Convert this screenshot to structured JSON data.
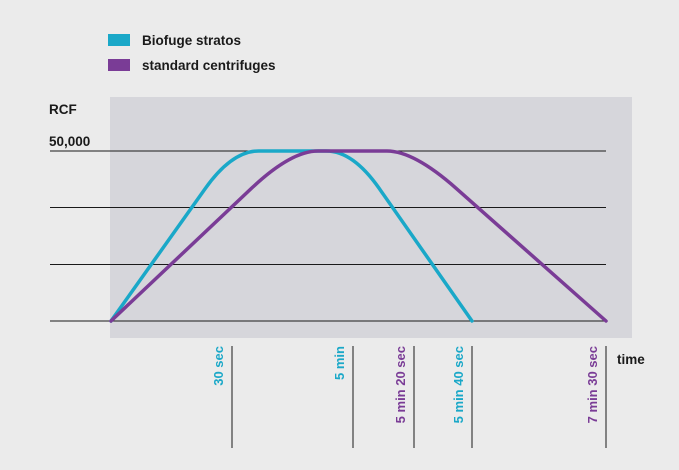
{
  "chart_data": {
    "type": "line",
    "ylabel": "RCF",
    "xlabel": "time",
    "y_tick_label": "50,000",
    "ylim": [
      0,
      50000
    ],
    "grid": true,
    "legend_position": "top-left",
    "colors": {
      "background": "#ebebeb",
      "plot_area": "#d6d6db"
    },
    "series": [
      {
        "name": "Biofuge stratos",
        "color": "#1aa8c8",
        "x_sec": [
          0,
          30,
          300,
          340
        ],
        "y": [
          0,
          50000,
          50000,
          0
        ]
      },
      {
        "name": "standard centrifuges",
        "color": "#7a3c96",
        "x_sec": [
          0,
          120,
          320,
          450
        ],
        "y": [
          0,
          50000,
          50000,
          0
        ]
      }
    ],
    "x_ticks": [
      {
        "label": "30 sec",
        "series": "Biofuge stratos"
      },
      {
        "label": "5 min",
        "series": "Biofuge stratos"
      },
      {
        "label": "5 min 20 sec",
        "series": "standard centrifuges"
      },
      {
        "label": "5 min 40 sec",
        "series": "Biofuge stratos"
      },
      {
        "label": "7 min 30 sec",
        "series": "standard centrifuges"
      }
    ]
  }
}
